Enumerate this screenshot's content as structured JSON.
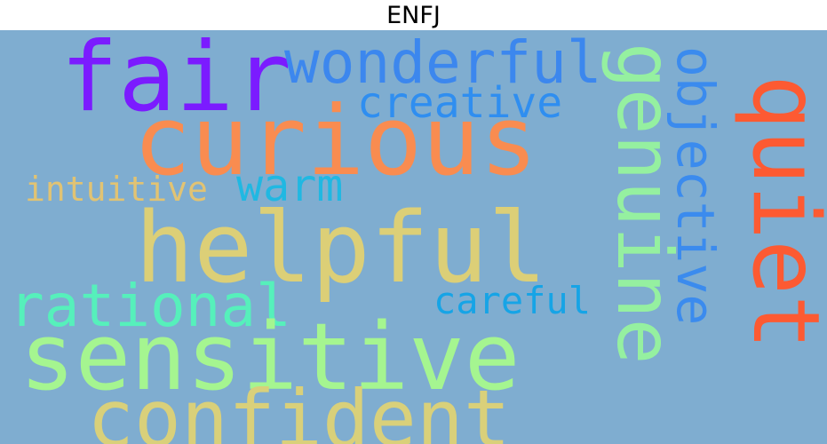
{
  "title": "ENFJ",
  "colors": {
    "background": "#7fadd0"
  },
  "words": [
    {
      "key": "fair",
      "text": "fair",
      "color": "#7b1bff",
      "orientation": "horizontal"
    },
    {
      "key": "wonderful",
      "text": "wonderful",
      "color": "#3c87ee",
      "orientation": "horizontal"
    },
    {
      "key": "creative",
      "text": "creative",
      "color": "#2f8ef0",
      "orientation": "horizontal"
    },
    {
      "key": "curious",
      "text": "curious",
      "color": "#f98c50",
      "orientation": "horizontal"
    },
    {
      "key": "genuine",
      "text": "genuine",
      "color": "#95f0a0",
      "orientation": "vertical"
    },
    {
      "key": "objective",
      "text": "objective",
      "color": "#3b8bee",
      "orientation": "vertical"
    },
    {
      "key": "quiet",
      "text": "quiet",
      "color": "#fd5a32",
      "orientation": "vertical"
    },
    {
      "key": "intuitive",
      "text": "intuitive",
      "color": "#e1c373",
      "orientation": "horizontal"
    },
    {
      "key": "warm",
      "text": "warm",
      "color": "#20b8e2",
      "orientation": "horizontal"
    },
    {
      "key": "helpful",
      "text": "helpful",
      "color": "#dccf77",
      "orientation": "horizontal"
    },
    {
      "key": "rational",
      "text": "rational",
      "color": "#56f0bb",
      "orientation": "horizontal"
    },
    {
      "key": "careful",
      "text": "careful",
      "color": "#16a4e6",
      "orientation": "horizontal"
    },
    {
      "key": "sensitive",
      "text": "sensitive",
      "color": "#a5f590",
      "orientation": "horizontal"
    },
    {
      "key": "confident",
      "text": "confident",
      "color": "#d9d07a",
      "orientation": "horizontal"
    }
  ]
}
